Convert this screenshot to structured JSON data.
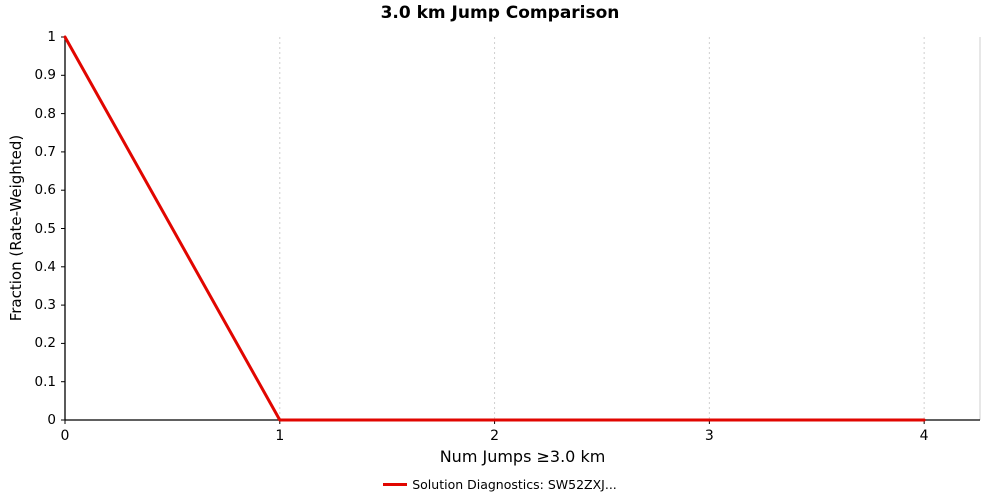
{
  "title": "3.0 km Jump Comparison",
  "chart_data": {
    "type": "line",
    "title": "3.0 km Jump Comparison",
    "xlabel": "Num Jumps ≥3.0 km",
    "ylabel": "Fraction (Rate-Weighted)",
    "x": [
      0,
      1,
      2,
      3,
      4
    ],
    "series": [
      {
        "name": "Solution Diagnostics: SW52ZXJ...",
        "color": "#e10600",
        "values": [
          1,
          0,
          0,
          0,
          0
        ]
      }
    ],
    "xlim": [
      0,
      4.26
    ],
    "ylim": [
      0,
      1
    ],
    "xticks": [
      0,
      1,
      2,
      3,
      4
    ],
    "yticks": [
      0,
      0.1,
      0.2,
      0.3,
      0.4,
      0.5,
      0.6,
      0.7,
      0.8,
      0.9,
      1
    ],
    "grid": "vertical-dotted",
    "legend_position": "bottom-center",
    "colors": {
      "line": "#e10600",
      "grid": "#cfcfcf",
      "axis": "#000000",
      "background": "#ffffff",
      "text": "#000000"
    }
  },
  "legend": {
    "items": [
      {
        "label": "Solution Diagnostics: SW52ZXJ...",
        "color": "#e10600"
      }
    ]
  }
}
